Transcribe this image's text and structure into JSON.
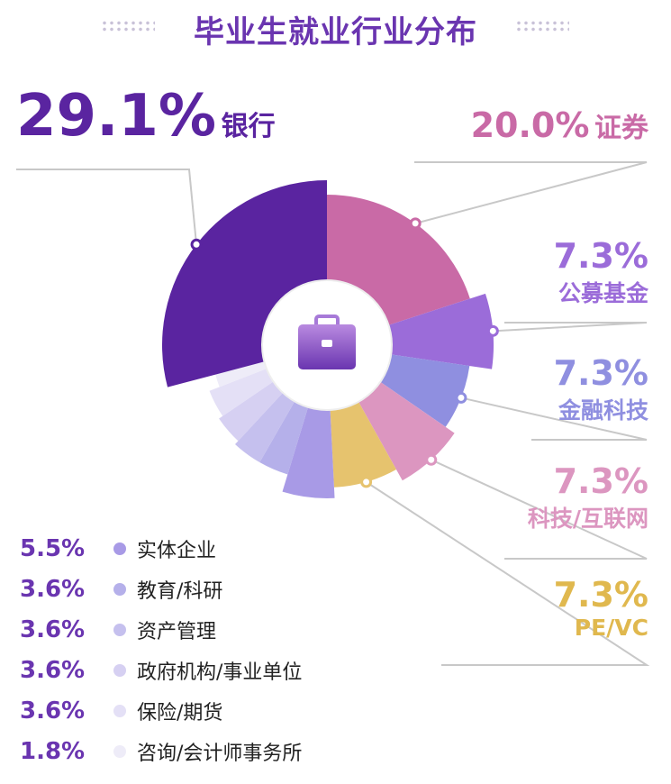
{
  "chart_data": {
    "type": "pie",
    "title": "毕业生就业行业分布",
    "unit": "%",
    "center_icon": "briefcase-icon",
    "slices": [
      {
        "label": "证券",
        "value": 20.0,
        "display": "20.0%",
        "color": "#c96aa6"
      },
      {
        "label": "公募基金",
        "value": 7.3,
        "display": "7.3%",
        "color": "#9b6cd9"
      },
      {
        "label": "金融科技",
        "value": 7.3,
        "display": "7.3%",
        "color": "#8f8fe0"
      },
      {
        "label": "科技/互联网",
        "value": 7.3,
        "display": "7.3%",
        "color": "#dc96c0"
      },
      {
        "label": "PE/VC",
        "value": 7.3,
        "display": "7.3%",
        "color": "#e6c36e"
      },
      {
        "label": "实体企业",
        "value": 5.5,
        "display": "5.5%",
        "color": "#a89ae6"
      },
      {
        "label": "教育/科研",
        "value": 3.6,
        "display": "3.6%",
        "color": "#b5b0ea"
      },
      {
        "label": "资产管理",
        "value": 3.6,
        "display": "3.6%",
        "color": "#c5c0ee"
      },
      {
        "label": "政府机构/事业单位",
        "value": 3.6,
        "display": "3.6%",
        "color": "#d6d0f2"
      },
      {
        "label": "保险/期货",
        "value": 3.6,
        "display": "3.6%",
        "color": "#e4e0f6"
      },
      {
        "label": "咨询/会计师事务所",
        "value": 1.8,
        "display": "1.8%",
        "color": "#eeecf8"
      },
      {
        "label": "银行",
        "value": 29.1,
        "display": "29.1%",
        "color": "#5a24a0"
      }
    ]
  }
}
